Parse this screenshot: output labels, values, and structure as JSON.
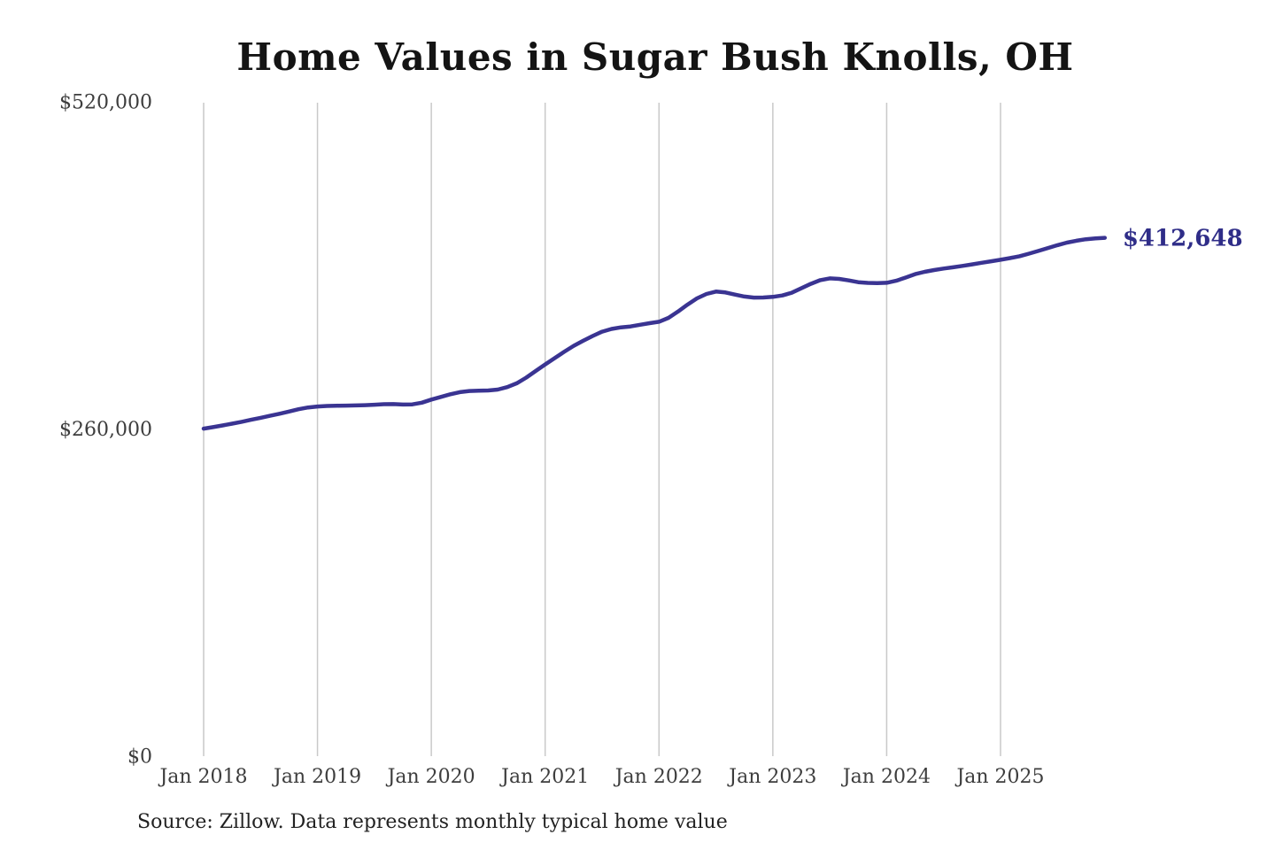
{
  "chart_data": {
    "type": "line",
    "title": "Home Values in Sugar Bush Knolls, OH",
    "source": "Source: Zillow. Data represents monthly typical home value",
    "end_label": "$412,648",
    "end_value": 412648,
    "ylim": [
      0,
      520000
    ],
    "grid": {
      "vertical": true,
      "horizontal": false
    },
    "legend": "none",
    "colors": {
      "line": "#3a3492",
      "end_label": "#2f2d88",
      "gridline": "#c9c9c9",
      "title": "#141414",
      "tick_label": "#3d3d3d",
      "source": "#222222",
      "background": "#ffffff"
    },
    "y_ticks": [
      {
        "value": 0,
        "label": "$0"
      },
      {
        "value": 260000,
        "label": "$260,000"
      },
      {
        "value": 520000,
        "label": "$520,000"
      }
    ],
    "x_ticks": [
      {
        "month_index": 0,
        "label": "Jan 2018"
      },
      {
        "month_index": 12,
        "label": "Jan 2019"
      },
      {
        "month_index": 24,
        "label": "Jan 2020"
      },
      {
        "month_index": 36,
        "label": "Jan 2021"
      },
      {
        "month_index": 48,
        "label": "Jan 2022"
      },
      {
        "month_index": 60,
        "label": "Jan 2023"
      },
      {
        "month_index": 72,
        "label": "Jan 2024"
      },
      {
        "month_index": 84,
        "label": "Jan 2025"
      }
    ],
    "series": [
      {
        "name": "Monthly typical home value",
        "unit": "USD",
        "start_month": "2018-01",
        "end_month": "2025-12",
        "values": [
          261000,
          262200,
          263500,
          264900,
          266400,
          268000,
          269600,
          271200,
          272800,
          274600,
          276400,
          277800,
          278600,
          279000,
          279200,
          279300,
          279400,
          279600,
          280000,
          280400,
          280500,
          280100,
          280300,
          281600,
          284100,
          286200,
          288300,
          290000,
          290900,
          291200,
          291300,
          292000,
          294000,
          297000,
          301500,
          306800,
          312000,
          317000,
          322000,
          326800,
          330800,
          334600,
          338000,
          340200,
          341500,
          342200,
          343500,
          344800,
          345900,
          349000,
          354000,
          359500,
          364500,
          368000,
          369900,
          369200,
          367500,
          366000,
          365100,
          365200,
          365700,
          366800,
          369000,
          372500,
          376000,
          379000,
          380400,
          380000,
          378800,
          377400,
          376800,
          376700,
          376900,
          378500,
          381000,
          383800,
          385600,
          387000,
          388200,
          389200,
          390300,
          391500,
          392800,
          394000,
          395200,
          396500,
          398000,
          400000,
          402200,
          404500,
          406800,
          408800,
          410300,
          411500,
          412200,
          412648
        ]
      }
    ]
  }
}
